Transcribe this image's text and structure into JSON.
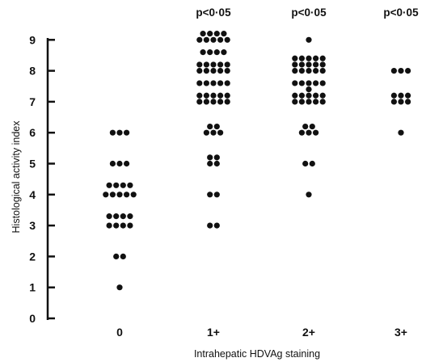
{
  "chart_data": {
    "type": "scatter",
    "title": "",
    "xlabel": "Intrahepatic HDVAg staining",
    "ylabel": "Histological activity index",
    "categories": [
      "0",
      "1+",
      "2+",
      "3+"
    ],
    "yticks": [
      "0",
      "1",
      "2",
      "3",
      "4",
      "5",
      "6",
      "7",
      "8",
      "9"
    ],
    "ylim": [
      0,
      9
    ],
    "grid": false,
    "annotations": [
      "",
      "p<0·05",
      "p<0·05",
      "p<0·05"
    ],
    "groups": [
      {
        "category": "0",
        "values": [
          1,
          2,
          2,
          3,
          3,
          3,
          3,
          3.3,
          3.3,
          3.3,
          3.3,
          4,
          4,
          4,
          4,
          4,
          4.3,
          4.3,
          4.3,
          4.3,
          5,
          5,
          5,
          6,
          6,
          6
        ]
      },
      {
        "category": "1+",
        "values": [
          3,
          3,
          4,
          4,
          5,
          5,
          5.2,
          5.2,
          6,
          6,
          6,
          6.2,
          6.2,
          7,
          7,
          7,
          7,
          7,
          7.2,
          7.2,
          7.2,
          7.2,
          7.2,
          7.6,
          7.6,
          7.6,
          7.6,
          7.6,
          8,
          8,
          8,
          8,
          8,
          8.2,
          8.2,
          8.2,
          8.2,
          8.2,
          8.6,
          8.6,
          8.6,
          8.6,
          9,
          9,
          9,
          9,
          9,
          9.2,
          9.2,
          9.2,
          9.2
        ]
      },
      {
        "category": "2+",
        "values": [
          4,
          5,
          5,
          6,
          6,
          6,
          6.2,
          6.2,
          7,
          7,
          7,
          7,
          7,
          7.2,
          7.2,
          7.2,
          7.2,
          7.2,
          7.4,
          7.6,
          7.6,
          7.6,
          7.6,
          7.6,
          8,
          8,
          8,
          8,
          8,
          8.2,
          8.2,
          8.2,
          8.2,
          8.2,
          8.4,
          8.4,
          8.4,
          8.4,
          8.4,
          9
        ]
      },
      {
        "category": "3+",
        "values": [
          6,
          7,
          7,
          7,
          7.2,
          7.2,
          7.2,
          8,
          8,
          8
        ]
      }
    ]
  }
}
